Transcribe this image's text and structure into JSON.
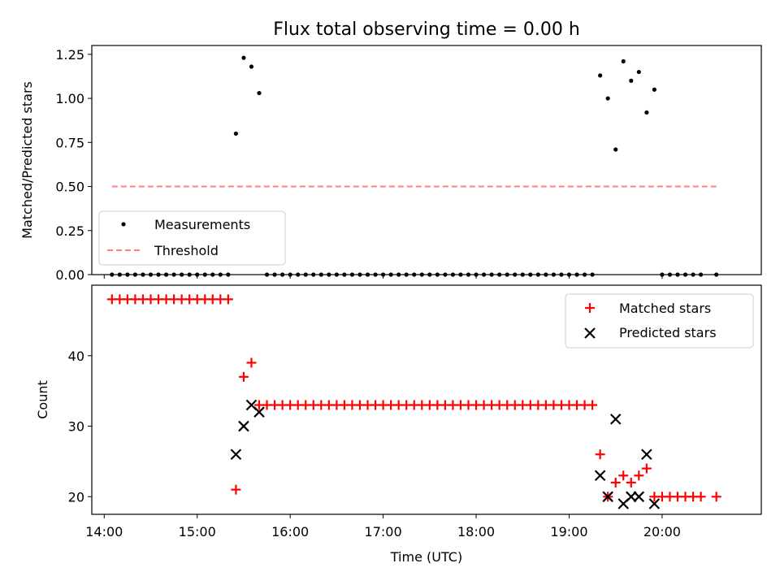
{
  "figure": {
    "title": "Flux total observing time = 0.00 h"
  },
  "chart_data": [
    {
      "type": "scatter",
      "ylabel": "Matched/Predicted stars",
      "xlabel": "",
      "ylim": [
        0,
        1.3
      ],
      "xlim": [
        "13:52",
        "21:04"
      ],
      "grid": false,
      "legend_placement": "lower-left",
      "yticks": [
        "0.00",
        "0.25",
        "0.50",
        "0.75",
        "1.00",
        "1.25"
      ],
      "series": [
        {
          "name": "Measurements",
          "marker": "dot",
          "color": "#000000",
          "points": [
            [
              "14:05",
              0
            ],
            [
              "14:10",
              0
            ],
            [
              "14:15",
              0
            ],
            [
              "14:20",
              0
            ],
            [
              "14:25",
              0
            ],
            [
              "14:30",
              0
            ],
            [
              "14:35",
              0
            ],
            [
              "14:40",
              0
            ],
            [
              "14:45",
              0
            ],
            [
              "14:50",
              0
            ],
            [
              "14:55",
              0
            ],
            [
              "15:00",
              0
            ],
            [
              "15:05",
              0
            ],
            [
              "15:10",
              0
            ],
            [
              "15:15",
              0
            ],
            [
              "15:20",
              0
            ],
            [
              "15:25",
              0.8
            ],
            [
              "15:30",
              1.23
            ],
            [
              "15:35",
              1.18
            ],
            [
              "15:40",
              1.03
            ],
            [
              "15:45",
              0
            ],
            [
              "15:50",
              0
            ],
            [
              "15:55",
              0
            ],
            [
              "16:00",
              0
            ],
            [
              "16:05",
              0
            ],
            [
              "16:10",
              0
            ],
            [
              "16:15",
              0
            ],
            [
              "16:20",
              0
            ],
            [
              "16:25",
              0
            ],
            [
              "16:30",
              0
            ],
            [
              "16:35",
              0
            ],
            [
              "16:40",
              0
            ],
            [
              "16:45",
              0
            ],
            [
              "16:50",
              0
            ],
            [
              "16:55",
              0
            ],
            [
              "17:00",
              0
            ],
            [
              "17:05",
              0
            ],
            [
              "17:10",
              0
            ],
            [
              "17:15",
              0
            ],
            [
              "17:20",
              0
            ],
            [
              "17:25",
              0
            ],
            [
              "17:30",
              0
            ],
            [
              "17:35",
              0
            ],
            [
              "17:40",
              0
            ],
            [
              "17:45",
              0
            ],
            [
              "17:50",
              0
            ],
            [
              "17:55",
              0
            ],
            [
              "18:00",
              0
            ],
            [
              "18:05",
              0
            ],
            [
              "18:10",
              0
            ],
            [
              "18:15",
              0
            ],
            [
              "18:20",
              0
            ],
            [
              "18:25",
              0
            ],
            [
              "18:30",
              0
            ],
            [
              "18:35",
              0
            ],
            [
              "18:40",
              0
            ],
            [
              "18:45",
              0
            ],
            [
              "18:50",
              0
            ],
            [
              "18:55",
              0
            ],
            [
              "19:00",
              0
            ],
            [
              "19:05",
              0
            ],
            [
              "19:10",
              0
            ],
            [
              "19:15",
              0
            ],
            [
              "19:20",
              1.13
            ],
            [
              "19:25",
              1.0
            ],
            [
              "19:30",
              0.71
            ],
            [
              "19:35",
              1.21
            ],
            [
              "19:40",
              1.1
            ],
            [
              "19:45",
              1.15
            ],
            [
              "19:50",
              0.92
            ],
            [
              "19:55",
              1.05
            ],
            [
              "20:00",
              0
            ],
            [
              "20:05",
              0
            ],
            [
              "20:10",
              0
            ],
            [
              "20:15",
              0
            ],
            [
              "20:20",
              0
            ],
            [
              "20:25",
              0
            ],
            [
              "20:35",
              0
            ]
          ]
        },
        {
          "name": "Threshold",
          "style": "dashed",
          "color": "#ff7f7f",
          "points": [
            [
              "14:05",
              0.5
            ],
            [
              "20:35",
              0.5
            ]
          ]
        }
      ]
    },
    {
      "type": "scatter",
      "xlabel": "Time (UTC)",
      "ylabel": "Count",
      "ylim": [
        17.5,
        50
      ],
      "xlim": [
        "13:52",
        "21:04"
      ],
      "grid": false,
      "legend_placement": "top-right",
      "xticks": [
        "14:00",
        "15:00",
        "16:00",
        "17:00",
        "18:00",
        "19:00",
        "20:00"
      ],
      "yticks": [
        "20",
        "30",
        "40"
      ],
      "series": [
        {
          "name": "Matched stars",
          "marker": "plus",
          "color": "#ff0000",
          "points": [
            [
              "14:05",
              48
            ],
            [
              "14:10",
              48
            ],
            [
              "14:15",
              48
            ],
            [
              "14:20",
              48
            ],
            [
              "14:25",
              48
            ],
            [
              "14:30",
              48
            ],
            [
              "14:35",
              48
            ],
            [
              "14:40",
              48
            ],
            [
              "14:45",
              48
            ],
            [
              "14:50",
              48
            ],
            [
              "14:55",
              48
            ],
            [
              "15:00",
              48
            ],
            [
              "15:05",
              48
            ],
            [
              "15:10",
              48
            ],
            [
              "15:15",
              48
            ],
            [
              "15:20",
              48
            ],
            [
              "15:25",
              21
            ],
            [
              "15:30",
              37
            ],
            [
              "15:35",
              39
            ],
            [
              "15:40",
              33
            ],
            [
              "15:45",
              33
            ],
            [
              "15:50",
              33
            ],
            [
              "15:55",
              33
            ],
            [
              "16:00",
              33
            ],
            [
              "16:05",
              33
            ],
            [
              "16:10",
              33
            ],
            [
              "16:15",
              33
            ],
            [
              "16:20",
              33
            ],
            [
              "16:25",
              33
            ],
            [
              "16:30",
              33
            ],
            [
              "16:35",
              33
            ],
            [
              "16:40",
              33
            ],
            [
              "16:45",
              33
            ],
            [
              "16:50",
              33
            ],
            [
              "16:55",
              33
            ],
            [
              "17:00",
              33
            ],
            [
              "17:05",
              33
            ],
            [
              "17:10",
              33
            ],
            [
              "17:15",
              33
            ],
            [
              "17:20",
              33
            ],
            [
              "17:25",
              33
            ],
            [
              "17:30",
              33
            ],
            [
              "17:35",
              33
            ],
            [
              "17:40",
              33
            ],
            [
              "17:45",
              33
            ],
            [
              "17:50",
              33
            ],
            [
              "17:55",
              33
            ],
            [
              "18:00",
              33
            ],
            [
              "18:05",
              33
            ],
            [
              "18:10",
              33
            ],
            [
              "18:15",
              33
            ],
            [
              "18:20",
              33
            ],
            [
              "18:25",
              33
            ],
            [
              "18:30",
              33
            ],
            [
              "18:35",
              33
            ],
            [
              "18:40",
              33
            ],
            [
              "18:45",
              33
            ],
            [
              "18:50",
              33
            ],
            [
              "18:55",
              33
            ],
            [
              "19:00",
              33
            ],
            [
              "19:05",
              33
            ],
            [
              "19:10",
              33
            ],
            [
              "19:15",
              33
            ],
            [
              "19:20",
              26
            ],
            [
              "19:25",
              20
            ],
            [
              "19:30",
              22
            ],
            [
              "19:35",
              23
            ],
            [
              "19:40",
              22
            ],
            [
              "19:45",
              23
            ],
            [
              "19:50",
              24
            ],
            [
              "19:55",
              20
            ],
            [
              "20:00",
              20
            ],
            [
              "20:05",
              20
            ],
            [
              "20:10",
              20
            ],
            [
              "20:15",
              20
            ],
            [
              "20:20",
              20
            ],
            [
              "20:25",
              20
            ],
            [
              "20:35",
              20
            ]
          ]
        },
        {
          "name": "Predicted stars",
          "marker": "x",
          "color": "#000000",
          "points": [
            [
              "15:25",
              26
            ],
            [
              "15:30",
              30
            ],
            [
              "15:35",
              33
            ],
            [
              "15:40",
              32
            ],
            [
              "19:20",
              23
            ],
            [
              "19:25",
              20
            ],
            [
              "19:30",
              31
            ],
            [
              "19:35",
              19
            ],
            [
              "19:40",
              20
            ],
            [
              "19:45",
              20
            ],
            [
              "19:50",
              26
            ],
            [
              "19:55",
              19
            ]
          ]
        }
      ]
    }
  ]
}
